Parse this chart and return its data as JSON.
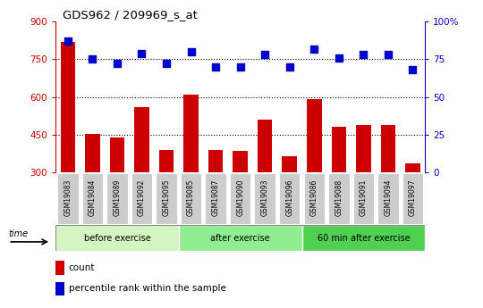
{
  "title": "GDS962 / 209969_s_at",
  "categories": [
    "GSM19083",
    "GSM19084",
    "GSM19089",
    "GSM19092",
    "GSM19095",
    "GSM19085",
    "GSM19087",
    "GSM19090",
    "GSM19093",
    "GSM19096",
    "GSM19086",
    "GSM19088",
    "GSM19091",
    "GSM19094",
    "GSM19097"
  ],
  "counts": [
    820,
    455,
    440,
    560,
    390,
    610,
    390,
    385,
    510,
    365,
    590,
    480,
    490,
    490,
    335
  ],
  "percentiles": [
    87,
    75,
    72,
    79,
    72,
    80,
    70,
    70,
    78,
    70,
    82,
    76,
    78,
    78,
    68
  ],
  "groups": [
    {
      "label": "before exercise",
      "start": 0,
      "end": 5,
      "color": "#d4f5c0"
    },
    {
      "label": "after exercise",
      "start": 5,
      "end": 10,
      "color": "#90ee90"
    },
    {
      "label": "60 min after exercise",
      "start": 10,
      "end": 15,
      "color": "#50d050"
    }
  ],
  "ylim_left": [
    300,
    900
  ],
  "ylim_right": [
    0,
    100
  ],
  "yticks_left": [
    300,
    450,
    600,
    750,
    900
  ],
  "yticks_right": [
    0,
    25,
    50,
    75,
    100
  ],
  "bar_color": "#cc0000",
  "dot_color": "#0000cc",
  "bg_xticklabels": "#cccccc",
  "legend_count_label": "count",
  "legend_pct_label": "percentile rank within the sample",
  "left_axis_color": "#cc0000",
  "right_axis_color": "#0000cc",
  "grid_yticks": [
    450,
    600,
    750
  ]
}
